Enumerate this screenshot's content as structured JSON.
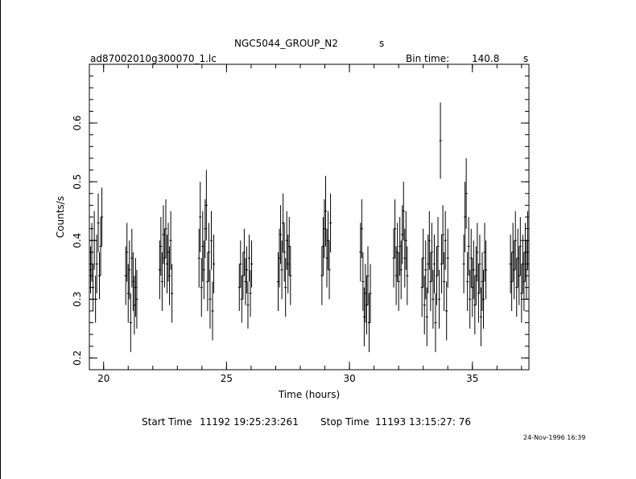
{
  "header": {
    "title": "NGC5044_GROUP_N2",
    "title_suffix": "s",
    "filename": "ad87002010g300070_1.lc",
    "bin_label": "Bin time:",
    "bin_value": "140.8",
    "bin_unit": "s"
  },
  "footer": {
    "start_label": "Start Time",
    "start_value": "11192 19:25:23:261",
    "stop_label": "Stop Time",
    "stop_value": "11193 13:15:27: 76",
    "stamp": "24-Nov-1996 16:39"
  },
  "chart_data": {
    "type": "scatter",
    "xlabel": "Time (hours)",
    "ylabel": "Counts/s",
    "xlim": [
      19.42,
      37.3
    ],
    "ylim": [
      0.18,
      0.7
    ],
    "xticks": [
      20,
      25,
      30,
      35
    ],
    "yticks": [
      0.2,
      0.3,
      0.4,
      0.5,
      0.6
    ],
    "x_minor_step": 1,
    "y_minor_step": 0.02,
    "grid": false,
    "series": [
      {
        "points": [
          [
            19.47,
            0.35,
            0.04
          ],
          [
            19.52,
            0.38,
            0.05
          ],
          [
            19.57,
            0.32,
            0.04
          ],
          [
            19.62,
            0.4,
            0.05
          ],
          [
            19.67,
            0.3,
            0.04
          ],
          [
            19.72,
            0.36,
            0.05
          ],
          [
            19.78,
            0.43,
            0.05
          ],
          [
            19.83,
            0.34,
            0.04
          ],
          [
            19.88,
            0.39,
            0.05
          ],
          [
            19.93,
            0.44,
            0.05
          ],
          [
            20.9,
            0.34,
            0.05
          ],
          [
            20.95,
            0.38,
            0.05
          ],
          [
            21.0,
            0.31,
            0.05
          ],
          [
            21.05,
            0.35,
            0.05
          ],
          [
            21.1,
            0.26,
            0.05
          ],
          [
            21.15,
            0.37,
            0.05
          ],
          [
            21.2,
            0.33,
            0.05
          ],
          [
            21.25,
            0.29,
            0.05
          ],
          [
            21.3,
            0.32,
            0.05
          ],
          [
            21.35,
            0.3,
            0.05
          ],
          [
            22.28,
            0.35,
            0.05
          ],
          [
            22.33,
            0.39,
            0.05
          ],
          [
            22.38,
            0.33,
            0.05
          ],
          [
            22.43,
            0.41,
            0.05
          ],
          [
            22.48,
            0.37,
            0.05
          ],
          [
            22.53,
            0.42,
            0.05
          ],
          [
            22.58,
            0.36,
            0.05
          ],
          [
            22.63,
            0.38,
            0.05
          ],
          [
            22.68,
            0.34,
            0.05
          ],
          [
            22.73,
            0.4,
            0.05
          ],
          [
            22.78,
            0.31,
            0.05
          ],
          [
            23.88,
            0.37,
            0.05
          ],
          [
            23.93,
            0.44,
            0.06
          ],
          [
            23.98,
            0.32,
            0.05
          ],
          [
            24.03,
            0.39,
            0.06
          ],
          [
            24.08,
            0.35,
            0.05
          ],
          [
            24.13,
            0.42,
            0.05
          ],
          [
            24.18,
            0.46,
            0.06
          ],
          [
            24.23,
            0.33,
            0.05
          ],
          [
            24.28,
            0.38,
            0.05
          ],
          [
            24.33,
            0.3,
            0.05
          ],
          [
            24.38,
            0.4,
            0.05
          ],
          [
            24.43,
            0.28,
            0.05
          ],
          [
            24.48,
            0.36,
            0.05
          ],
          [
            25.52,
            0.32,
            0.04
          ],
          [
            25.57,
            0.36,
            0.04
          ],
          [
            25.62,
            0.3,
            0.04
          ],
          [
            25.67,
            0.34,
            0.04
          ],
          [
            25.72,
            0.38,
            0.04
          ],
          [
            25.77,
            0.33,
            0.04
          ],
          [
            25.82,
            0.35,
            0.04
          ],
          [
            25.87,
            0.29,
            0.04
          ],
          [
            25.92,
            0.37,
            0.04
          ],
          [
            25.97,
            0.31,
            0.04
          ],
          [
            26.02,
            0.36,
            0.04
          ],
          [
            27.1,
            0.33,
            0.05
          ],
          [
            27.15,
            0.37,
            0.05
          ],
          [
            27.2,
            0.41,
            0.05
          ],
          [
            27.25,
            0.35,
            0.05
          ],
          [
            27.3,
            0.43,
            0.05
          ],
          [
            27.35,
            0.38,
            0.05
          ],
          [
            27.4,
            0.32,
            0.05
          ],
          [
            27.45,
            0.4,
            0.05
          ],
          [
            27.5,
            0.36,
            0.05
          ],
          [
            27.55,
            0.39,
            0.05
          ],
          [
            27.6,
            0.34,
            0.05
          ],
          [
            28.88,
            0.34,
            0.05
          ],
          [
            28.93,
            0.39,
            0.05
          ],
          [
            28.98,
            0.42,
            0.05
          ],
          [
            29.03,
            0.45,
            0.06
          ],
          [
            29.08,
            0.37,
            0.05
          ],
          [
            29.13,
            0.4,
            0.05
          ],
          [
            29.18,
            0.35,
            0.05
          ],
          [
            29.23,
            0.43,
            0.05
          ],
          [
            30.45,
            0.38,
            0.05
          ],
          [
            30.5,
            0.42,
            0.05
          ],
          [
            30.55,
            0.33,
            0.05
          ],
          [
            30.6,
            0.27,
            0.05
          ],
          [
            30.65,
            0.31,
            0.05
          ],
          [
            30.7,
            0.29,
            0.05
          ],
          [
            30.75,
            0.34,
            0.05
          ],
          [
            30.8,
            0.26,
            0.05
          ],
          [
            30.85,
            0.31,
            0.05
          ],
          [
            31.8,
            0.37,
            0.05
          ],
          [
            31.85,
            0.42,
            0.05
          ],
          [
            31.9,
            0.34,
            0.05
          ],
          [
            31.95,
            0.38,
            0.05
          ],
          [
            32.0,
            0.33,
            0.05
          ],
          [
            32.05,
            0.39,
            0.05
          ],
          [
            32.1,
            0.35,
            0.05
          ],
          [
            32.15,
            0.41,
            0.05
          ],
          [
            32.2,
            0.45,
            0.05
          ],
          [
            32.25,
            0.37,
            0.05
          ],
          [
            32.3,
            0.4,
            0.05
          ],
          [
            32.35,
            0.34,
            0.05
          ],
          [
            32.95,
            0.32,
            0.05
          ],
          [
            33.0,
            0.37,
            0.05
          ],
          [
            33.05,
            0.29,
            0.05
          ],
          [
            33.1,
            0.35,
            0.05
          ],
          [
            33.15,
            0.27,
            0.05
          ],
          [
            33.2,
            0.36,
            0.05
          ],
          [
            33.25,
            0.4,
            0.05
          ],
          [
            33.3,
            0.33,
            0.05
          ],
          [
            33.35,
            0.38,
            0.05
          ],
          [
            33.4,
            0.3,
            0.05
          ],
          [
            33.45,
            0.36,
            0.05
          ],
          [
            33.5,
            0.26,
            0.05
          ],
          [
            33.55,
            0.34,
            0.05
          ],
          [
            33.6,
            0.39,
            0.05
          ],
          [
            33.65,
            0.3,
            0.05
          ],
          [
            33.7,
            0.57,
            0.065
          ],
          [
            33.75,
            0.36,
            0.05
          ],
          [
            33.8,
            0.41,
            0.05
          ],
          [
            33.85,
            0.33,
            0.05
          ],
          [
            33.9,
            0.4,
            0.05
          ],
          [
            33.95,
            0.28,
            0.05
          ],
          [
            34.0,
            0.37,
            0.05
          ],
          [
            34.65,
            0.36,
            0.05
          ],
          [
            34.7,
            0.44,
            0.06
          ],
          [
            34.75,
            0.48,
            0.06
          ],
          [
            34.8,
            0.33,
            0.05
          ],
          [
            34.85,
            0.39,
            0.05
          ],
          [
            34.9,
            0.3,
            0.05
          ],
          [
            34.95,
            0.37,
            0.05
          ],
          [
            35.0,
            0.32,
            0.05
          ],
          [
            35.05,
            0.35,
            0.05
          ],
          [
            35.1,
            0.29,
            0.05
          ],
          [
            35.15,
            0.34,
            0.05
          ],
          [
            35.2,
            0.38,
            0.05
          ],
          [
            35.25,
            0.31,
            0.05
          ],
          [
            35.3,
            0.36,
            0.05
          ],
          [
            35.35,
            0.27,
            0.05
          ],
          [
            35.4,
            0.33,
            0.05
          ],
          [
            35.45,
            0.3,
            0.05
          ],
          [
            35.5,
            0.38,
            0.05
          ],
          [
            35.55,
            0.35,
            0.05
          ],
          [
            36.55,
            0.36,
            0.05
          ],
          [
            36.6,
            0.33,
            0.05
          ],
          [
            36.65,
            0.38,
            0.05
          ],
          [
            36.7,
            0.35,
            0.05
          ],
          [
            36.75,
            0.4,
            0.05
          ],
          [
            36.8,
            0.32,
            0.05
          ],
          [
            36.85,
            0.37,
            0.05
          ],
          [
            36.9,
            0.34,
            0.05
          ],
          [
            36.95,
            0.39,
            0.05
          ],
          [
            37.0,
            0.31,
            0.05
          ],
          [
            37.05,
            0.36,
            0.05
          ],
          [
            37.1,
            0.33,
            0.05
          ],
          [
            37.15,
            0.38,
            0.05
          ],
          [
            37.2,
            0.35,
            0.05
          ],
          [
            37.25,
            0.4,
            0.05
          ]
        ]
      }
    ]
  }
}
